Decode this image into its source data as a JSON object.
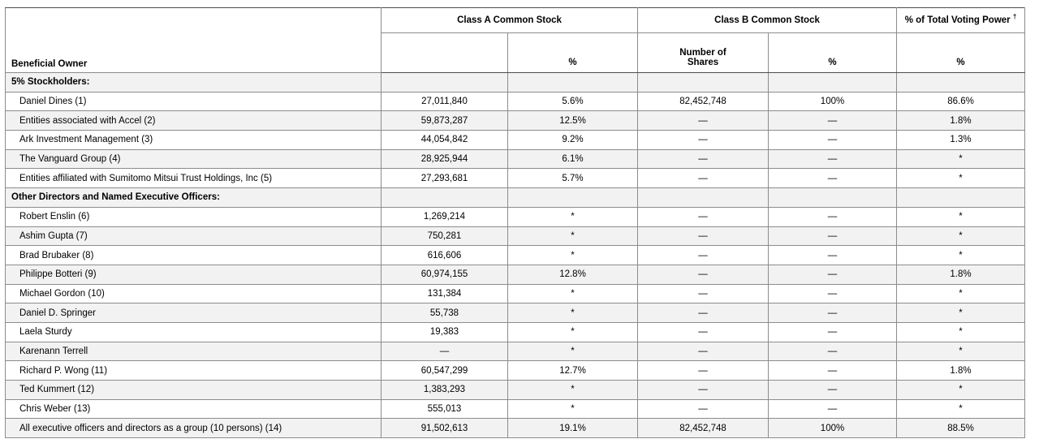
{
  "colors": {
    "row_stripe": "#f2f2f2",
    "grid_line": "#8c8c8c",
    "header_line": "#4d4d4d",
    "text": "#000000"
  },
  "table": {
    "headers": {
      "owner": "Beneficial Owner",
      "class_a": "Class A Common Stock",
      "class_b": "Class B Common Stock",
      "voting_power": "% of Total Voting Power",
      "voting_power_dagger": "†",
      "class_a_shares_sub": "",
      "class_b_shares_line1": "Number of",
      "class_b_shares_line2": "Shares",
      "pct": "%"
    },
    "rows": [
      {
        "type": "section",
        "owner": "5% Stockholders:",
        "a_shares": "",
        "a_pct": "",
        "b_shares": "",
        "b_pct": "",
        "vote_pct": ""
      },
      {
        "type": "item",
        "owner": "Daniel Dines (1)",
        "a_shares": "27,011,840",
        "a_pct": "5.6%",
        "b_shares": "82,452,748",
        "b_pct": "100%",
        "vote_pct": "86.6%"
      },
      {
        "type": "item",
        "owner": "Entities associated with Accel (2)",
        "a_shares": "59,873,287",
        "a_pct": "12.5%",
        "b_shares": "—",
        "b_pct": "—",
        "vote_pct": "1.8%"
      },
      {
        "type": "item",
        "owner": "Ark Investment Management (3)",
        "a_shares": "44,054,842",
        "a_pct": "9.2%",
        "b_shares": "—",
        "b_pct": "—",
        "vote_pct": "1.3%"
      },
      {
        "type": "item",
        "owner": "The Vanguard Group (4)",
        "a_shares": "28,925,944",
        "a_pct": "6.1%",
        "b_shares": "—",
        "b_pct": "—",
        "vote_pct": "*"
      },
      {
        "type": "item",
        "owner": "Entities affiliated with Sumitomo Mitsui Trust Holdings, Inc (5)",
        "a_shares": "27,293,681",
        "a_pct": "5.7%",
        "b_shares": "—",
        "b_pct": "—",
        "vote_pct": "*"
      },
      {
        "type": "section",
        "owner": "Other Directors and Named Executive Officers:",
        "a_shares": "",
        "a_pct": "",
        "b_shares": "",
        "b_pct": "",
        "vote_pct": ""
      },
      {
        "type": "item",
        "owner": "Robert Enslin (6)",
        "a_shares": "1,269,214",
        "a_pct": "*",
        "b_shares": "—",
        "b_pct": "—",
        "vote_pct": "*"
      },
      {
        "type": "item",
        "owner": "Ashim Gupta (7)",
        "a_shares": "750,281",
        "a_pct": "*",
        "b_shares": "—",
        "b_pct": "—",
        "vote_pct": "*"
      },
      {
        "type": "item",
        "owner": "Brad Brubaker (8)",
        "a_shares": "616,606",
        "a_pct": "*",
        "b_shares": "—",
        "b_pct": "—",
        "vote_pct": "*"
      },
      {
        "type": "item",
        "owner": "Philippe Botteri (9)",
        "a_shares": "60,974,155",
        "a_pct": "12.8%",
        "b_shares": "—",
        "b_pct": "—",
        "vote_pct": "1.8%"
      },
      {
        "type": "item",
        "owner": "Michael Gordon (10)",
        "a_shares": "131,384",
        "a_pct": "*",
        "b_shares": "—",
        "b_pct": "—",
        "vote_pct": "*"
      },
      {
        "type": "item",
        "owner": "Daniel D. Springer",
        "a_shares": "55,738",
        "a_pct": "*",
        "b_shares": "—",
        "b_pct": "—",
        "vote_pct": "*"
      },
      {
        "type": "item",
        "owner": "Laela Sturdy",
        "a_shares": "19,383",
        "a_pct": "*",
        "b_shares": "—",
        "b_pct": "—",
        "vote_pct": "*"
      },
      {
        "type": "item",
        "owner": "Karenann Terrell",
        "a_shares": "—",
        "a_pct": "*",
        "b_shares": "—",
        "b_pct": "—",
        "vote_pct": "*"
      },
      {
        "type": "item",
        "owner": "Richard P. Wong (11)",
        "a_shares": "60,547,299",
        "a_pct": "12.7%",
        "b_shares": "—",
        "b_pct": "—",
        "vote_pct": "1.8%"
      },
      {
        "type": "item",
        "owner": "Ted Kummert (12)",
        "a_shares": "1,383,293",
        "a_pct": "*",
        "b_shares": "—",
        "b_pct": "—",
        "vote_pct": "*"
      },
      {
        "type": "item",
        "owner": "Chris Weber (13)",
        "a_shares": "555,013",
        "a_pct": "*",
        "b_shares": "—",
        "b_pct": "—",
        "vote_pct": "*"
      },
      {
        "type": "item",
        "owner": "All executive officers and directors as a group (10 persons) (14)",
        "a_shares": "91,502,613",
        "a_pct": "19.1%",
        "b_shares": "82,452,748",
        "b_pct": "100%",
        "vote_pct": "88.5%"
      }
    ]
  }
}
